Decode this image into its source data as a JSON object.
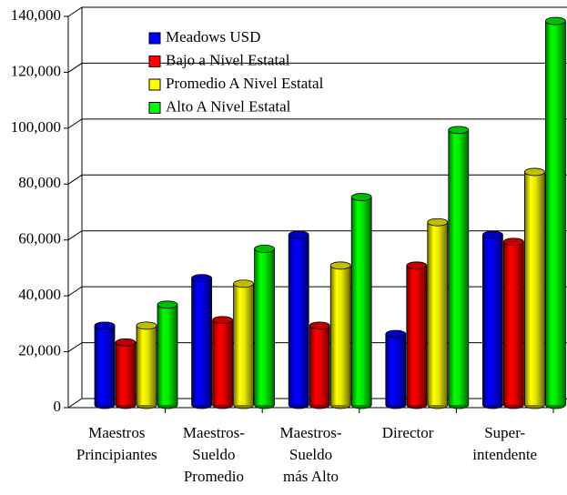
{
  "chart_data": {
    "type": "bar3d",
    "categories": [
      "Maestros\nPrincipiantes",
      "Maestros-\nSueldo\nPromedio",
      "Maestros-\nSueldo\nmás Alto",
      "Director",
      "Super-\nintendente"
    ],
    "series": [
      {
        "name": "Meadows USD",
        "color": "#0000ff",
        "values": [
          30000,
          47000,
          62500,
          27000,
          62500
        ]
      },
      {
        "name": "Bajo a Nivel Estatal",
        "color": "#ff0000",
        "values": [
          24000,
          32000,
          30000,
          51500,
          60000
        ]
      },
      {
        "name": "Promedio A Nivel Estatal",
        "color": "#ffff00",
        "values": [
          30000,
          45000,
          51500,
          67000,
          85000
        ]
      },
      {
        "name": "Alto A Nivel Estatal",
        "color": "#00ff00",
        "values": [
          37500,
          57500,
          76000,
          100000,
          139000
        ]
      }
    ],
    "ylim": [
      0,
      140000
    ],
    "yticks": [
      {
        "value": 0,
        "label": "0"
      },
      {
        "value": 20000,
        "label": "20,000"
      },
      {
        "value": 40000,
        "label": "40,000"
      },
      {
        "value": 60000,
        "label": "60,000"
      },
      {
        "value": 80000,
        "label": "80,000"
      },
      {
        "value": 100000,
        "label": "100,000"
      },
      {
        "value": 120000,
        "label": "120,000"
      },
      {
        "value": 140000,
        "label": "140,000"
      }
    ],
    "grid": true
  }
}
